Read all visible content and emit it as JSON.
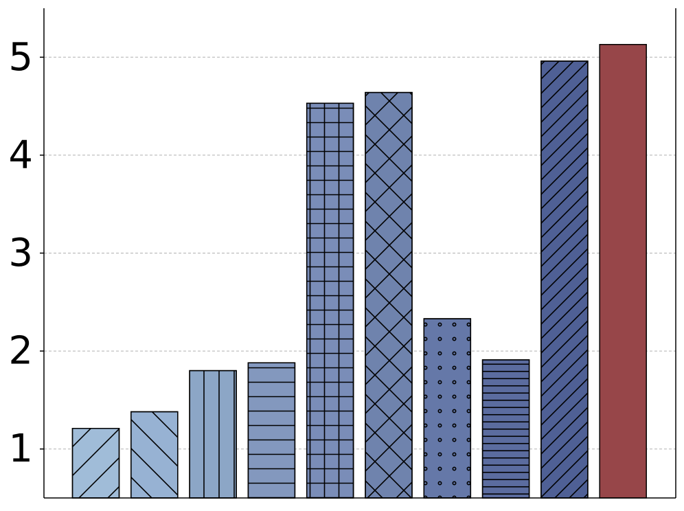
{
  "chart_data": {
    "type": "bar",
    "title": "",
    "xlabel": "",
    "ylabel": "",
    "ylim": [
      0.5,
      5.5
    ],
    "yticks": [
      1,
      2,
      3,
      4,
      5
    ],
    "grid": true,
    "bars": [
      {
        "value": 1.21,
        "color": "#a0bcd8",
        "hatch": "diag-fwd"
      },
      {
        "value": 1.38,
        "color": "#97b2d3",
        "hatch": "diag-back"
      },
      {
        "value": 1.8,
        "color": "#8ca6c6",
        "hatch": "vertical"
      },
      {
        "value": 1.88,
        "color": "#8398be",
        "hatch": "horizontal"
      },
      {
        "value": 4.53,
        "color": "#7a8db8",
        "hatch": "grid"
      },
      {
        "value": 4.64,
        "color": "#6f83ad",
        "hatch": "cross"
      },
      {
        "value": 2.33,
        "color": "#6578a8",
        "hatch": "dots"
      },
      {
        "value": 1.91,
        "color": "#5b6c9f",
        "hatch": "horizontal-dense"
      },
      {
        "value": 4.96,
        "color": "#4f6095",
        "hatch": "diag-fwd-dense"
      },
      {
        "value": 5.13,
        "color": "#974649",
        "hatch": "none"
      }
    ]
  }
}
